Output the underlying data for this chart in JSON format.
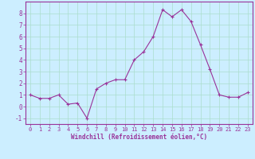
{
  "x": [
    0,
    1,
    2,
    3,
    4,
    5,
    6,
    7,
    8,
    9,
    10,
    11,
    12,
    13,
    14,
    15,
    16,
    17,
    18,
    19,
    20,
    21,
    22,
    23
  ],
  "y": [
    1,
    0.7,
    0.7,
    1,
    0.2,
    0.3,
    -1,
    1.5,
    2,
    2.3,
    2.3,
    4,
    4.7,
    6,
    8.3,
    7.7,
    8.3,
    7.3,
    5.3,
    3.2,
    1,
    0.8,
    0.8,
    1.2
  ],
  "line_color": "#993399",
  "marker": "+",
  "marker_color": "#993399",
  "bg_color": "#cceeff",
  "grid_color": "#aaddcc",
  "xlabel": "Windchill (Refroidissement éolien,°C)",
  "xlabel_color": "#993399",
  "tick_color": "#993399",
  "spine_color": "#993399",
  "ylim": [
    -1.5,
    9.0
  ],
  "xlim": [
    -0.5,
    23.5
  ],
  "yticks": [
    -1,
    0,
    1,
    2,
    3,
    4,
    5,
    6,
    7,
    8
  ],
  "xticks": [
    0,
    1,
    2,
    3,
    4,
    5,
    6,
    7,
    8,
    9,
    10,
    11,
    12,
    13,
    14,
    15,
    16,
    17,
    18,
    19,
    20,
    21,
    22,
    23
  ],
  "tick_fontsize": 5,
  "xlabel_fontsize": 5.5,
  "linewidth": 0.8,
  "markersize": 3
}
